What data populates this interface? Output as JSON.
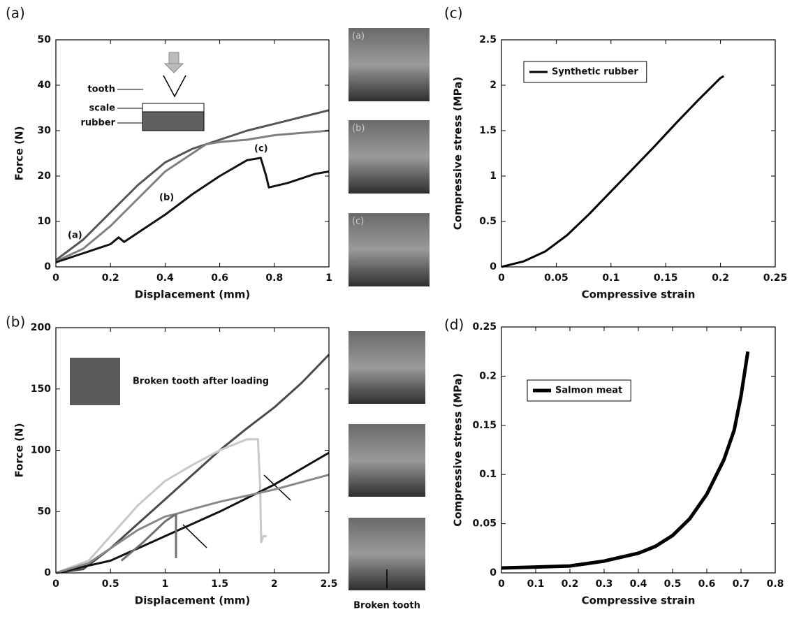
{
  "panels": [
    "(a)",
    "(b)",
    "(c)",
    "(d)"
  ],
  "photo_labels": [
    "(a)",
    "(b)",
    "(c)"
  ],
  "photo_caption": "Broken tooth",
  "chart_data": [
    {
      "type": "line",
      "xlabel": "Displacement (mm)",
      "ylabel": "Force (N)",
      "xlim": [
        0,
        1
      ],
      "ylim": [
        0,
        50
      ],
      "xticks": [
        0,
        0.2,
        0.4,
        0.6,
        0.8,
        1
      ],
      "yticks": [
        0,
        10,
        20,
        30,
        40,
        50
      ],
      "annotations": [
        "(a)",
        "(b)",
        "(c)",
        "tooth",
        "scale",
        "rubber"
      ],
      "series": [
        {
          "color": "#555555",
          "x": [
            0,
            0.1,
            0.2,
            0.3,
            0.4,
            0.5,
            0.6,
            0.7,
            0.8,
            0.9,
            1.0
          ],
          "values": [
            1.5,
            6,
            12,
            18,
            23,
            26,
            28,
            30,
            31.5,
            33,
            34.5
          ]
        },
        {
          "color": "#808080",
          "x": [
            0,
            0.1,
            0.2,
            0.3,
            0.4,
            0.5,
            0.55,
            0.6,
            0.7,
            0.8,
            0.9,
            1.0
          ],
          "values": [
            1.2,
            4,
            9,
            15,
            21,
            25,
            27,
            27.5,
            28,
            29,
            29.5,
            30
          ]
        },
        {
          "color": "#111111",
          "x": [
            0,
            0.1,
            0.2,
            0.23,
            0.25,
            0.3,
            0.4,
            0.5,
            0.6,
            0.7,
            0.75,
            0.77,
            0.78,
            0.85,
            0.95,
            1.0
          ],
          "values": [
            1,
            3,
            5,
            6.5,
            5.5,
            7.5,
            11.5,
            16,
            20,
            23.5,
            24,
            20,
            17.5,
            18.5,
            20.5,
            21
          ]
        }
      ]
    },
    {
      "type": "line",
      "xlabel": "Displacement (mm)",
      "ylabel": "Force (N)",
      "xlim": [
        0,
        2.5
      ],
      "ylim": [
        0,
        200
      ],
      "xticks": [
        0,
        0.5,
        1,
        1.5,
        2,
        2.5
      ],
      "yticks": [
        0,
        50,
        100,
        150,
        200
      ],
      "annotations": [
        "Broken tooth after loading"
      ],
      "series": [
        {
          "color": "#4a4a4a",
          "x": [
            0,
            0.25,
            0.5,
            0.75,
            1,
            1.25,
            1.5,
            1.75,
            2,
            2.25,
            2.5
          ],
          "values": [
            0,
            3,
            20,
            40,
            60,
            80,
            100,
            118,
            135,
            155,
            178
          ]
        },
        {
          "color": "#c8c8c8",
          "x": [
            0,
            0.3,
            0.5,
            0.75,
            1,
            1.25,
            1.5,
            1.75,
            1.85,
            1.87,
            1.88,
            1.9,
            1.93
          ],
          "values": [
            0,
            10,
            30,
            55,
            75,
            88,
            100,
            109,
            109,
            70,
            25,
            30,
            30
          ]
        },
        {
          "color": "#111111",
          "x": [
            0,
            0.5,
            1,
            1.5,
            2,
            2.5
          ],
          "values": [
            0,
            10,
            30,
            50,
            72,
            98
          ]
        },
        {
          "color": "#888888",
          "x": [
            0,
            0.3,
            0.5,
            0.75,
            1,
            1.1,
            1.25,
            1.5,
            2,
            2.5
          ],
          "values": [
            0,
            8,
            20,
            35,
            46,
            48,
            52,
            58,
            68,
            80
          ]
        },
        {
          "color": "#707070",
          "x": [
            0.6,
            0.8,
            1,
            1.1,
            1.1
          ],
          "values": [
            10,
            25,
            42,
            48,
            12
          ]
        }
      ]
    },
    {
      "type": "line",
      "xlabel": "Compressive strain",
      "ylabel": "Compressive stress (MPa)",
      "xlim": [
        0,
        0.25
      ],
      "ylim": [
        0,
        2.5
      ],
      "xticks": [
        0,
        0.05,
        0.1,
        0.15,
        0.2,
        0.25
      ],
      "yticks": [
        0,
        0.5,
        1,
        1.5,
        2,
        2.5
      ],
      "series": [
        {
          "name": "Synthetic rubber",
          "color": "#000000",
          "x": [
            0,
            0.02,
            0.04,
            0.06,
            0.08,
            0.1,
            0.12,
            0.14,
            0.16,
            0.18,
            0.2,
            0.203
          ],
          "values": [
            0,
            0.06,
            0.17,
            0.35,
            0.58,
            0.83,
            1.08,
            1.33,
            1.59,
            1.84,
            2.08,
            2.1
          ]
        }
      ]
    },
    {
      "type": "line",
      "xlabel": "Compressive strain",
      "ylabel": "Compressive stress (MPa)",
      "xlim": [
        0,
        0.8
      ],
      "ylim": [
        0,
        0.25
      ],
      "xticks": [
        0,
        0.1,
        0.2,
        0.3,
        0.4,
        0.5,
        0.6,
        0.7,
        0.8
      ],
      "yticks": [
        0,
        0.05,
        0.1,
        0.15,
        0.2,
        0.25
      ],
      "series": [
        {
          "name": "Salmon meat",
          "color": "#000000",
          "x": [
            0,
            0.1,
            0.2,
            0.3,
            0.4,
            0.45,
            0.5,
            0.55,
            0.6,
            0.65,
            0.68,
            0.7,
            0.72
          ],
          "values": [
            0.005,
            0.006,
            0.007,
            0.012,
            0.02,
            0.027,
            0.038,
            0.055,
            0.08,
            0.115,
            0.145,
            0.18,
            0.225
          ]
        }
      ]
    }
  ]
}
